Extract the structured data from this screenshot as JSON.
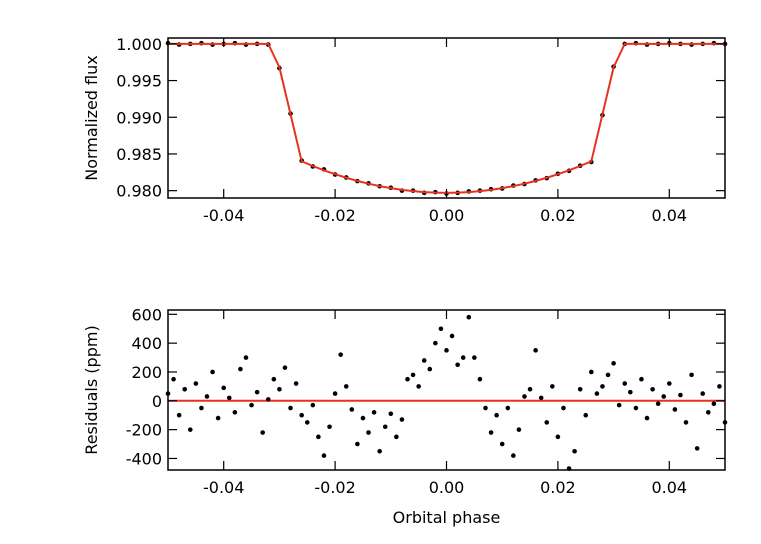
{
  "chart_data": [
    {
      "type": "scatter",
      "ylabel": "Normalized flux",
      "xlim": [
        -0.05,
        0.05
      ],
      "ylim": [
        0.979,
        1.0008
      ],
      "xticks": [
        -0.04,
        -0.02,
        {
          "value": 0,
          "label": "0.00"
        },
        0.02,
        0.04
      ],
      "yticks": [
        {
          "value": 1.0,
          "label": "1.000"
        },
        0.995,
        {
          "value": 0.99,
          "label": "0.990"
        },
        0.985,
        {
          "value": 0.98,
          "label": "0.980"
        }
      ],
      "color": "#000000",
      "x": [
        -0.05,
        -0.048,
        -0.046,
        -0.044,
        -0.042,
        -0.04,
        -0.038,
        -0.036,
        -0.034,
        -0.032,
        -0.03,
        -0.028,
        -0.026,
        -0.024,
        -0.022,
        -0.02,
        -0.018,
        -0.016,
        -0.014,
        -0.012,
        -0.01,
        -0.008,
        -0.006,
        -0.004,
        -0.002,
        0.0,
        0.002,
        0.004,
        0.006,
        0.008,
        0.01,
        0.012,
        0.014,
        0.016,
        0.018,
        0.02,
        0.022,
        0.024,
        0.026,
        0.028,
        0.03,
        0.032,
        0.034,
        0.036,
        0.038,
        0.04,
        0.042,
        0.044,
        0.046,
        0.048,
        0.05
      ],
      "values": [
        1.0001,
        0.9999,
        1.0,
        1.0001,
        0.9999,
        1.0,
        1.0001,
        0.9999,
        1.0,
        0.9999,
        0.9967,
        0.9905,
        0.9841,
        0.9833,
        0.9829,
        0.9822,
        0.9818,
        0.9813,
        0.981,
        0.9806,
        0.9804,
        0.98,
        0.98,
        0.9797,
        0.9798,
        0.9796,
        0.9797,
        0.9799,
        0.98,
        0.9802,
        0.9803,
        0.9807,
        0.9809,
        0.9814,
        0.9817,
        0.9823,
        0.9827,
        0.9834,
        0.9839,
        0.9903,
        0.9969,
        1.0,
        1.0001,
        0.9999,
        1.0,
        1.0001,
        1.0,
        0.9999,
        1.0,
        1.0001,
        1.0
      ],
      "model": {
        "color": "#e8321e",
        "x": [
          -0.05,
          -0.032,
          -0.03,
          -0.028,
          -0.026,
          -0.024,
          -0.022,
          -0.02,
          -0.018,
          -0.016,
          -0.014,
          -0.012,
          -0.01,
          -0.008,
          -0.006,
          -0.004,
          -0.002,
          0.0,
          0.002,
          0.004,
          0.006,
          0.008,
          0.01,
          0.012,
          0.014,
          0.016,
          0.018,
          0.02,
          0.022,
          0.024,
          0.026,
          0.028,
          0.03,
          0.032,
          0.05
        ],
        "values": [
          1.0,
          1.0,
          0.9968,
          0.9904,
          0.984,
          0.98336,
          0.98278,
          0.98225,
          0.98176,
          0.98133,
          0.98095,
          0.98062,
          0.98034,
          0.98011,
          0.97993,
          0.9798,
          0.97973,
          0.9797,
          0.97973,
          0.9798,
          0.97993,
          0.98011,
          0.98034,
          0.98062,
          0.98095,
          0.98133,
          0.98176,
          0.98225,
          0.98278,
          0.98336,
          0.984,
          0.9904,
          0.9968,
          1.0,
          1.0
        ]
      }
    },
    {
      "type": "scatter",
      "ylabel": "Residuals (ppm)",
      "xlabel": "Orbital phase",
      "xlim": [
        -0.05,
        0.05
      ],
      "ylim": [
        -480,
        630
      ],
      "xticks": [
        -0.04,
        -0.02,
        {
          "value": 0,
          "label": "0.00"
        },
        0.02,
        0.04
      ],
      "yticks": [
        600,
        400,
        200,
        0,
        -200,
        -400
      ],
      "color": "#000000",
      "hline": {
        "value": 0,
        "color": "#e8321e"
      },
      "x": [
        -0.05,
        -0.049,
        -0.048,
        -0.047,
        -0.046,
        -0.045,
        -0.044,
        -0.043,
        -0.042,
        -0.041,
        -0.04,
        -0.039,
        -0.038,
        -0.037,
        -0.036,
        -0.035,
        -0.034,
        -0.033,
        -0.032,
        -0.031,
        -0.03,
        -0.029,
        -0.028,
        -0.027,
        -0.026,
        -0.025,
        -0.024,
        -0.023,
        -0.022,
        -0.021,
        -0.02,
        -0.019,
        -0.018,
        -0.017,
        -0.016,
        -0.015,
        -0.014,
        -0.013,
        -0.012,
        -0.011,
        -0.01,
        -0.009,
        -0.008,
        -0.007,
        -0.006,
        -0.005,
        -0.004,
        -0.003,
        -0.002,
        -0.001,
        0.0,
        0.001,
        0.002,
        0.003,
        0.004,
        0.005,
        0.006,
        0.007,
        0.008,
        0.009,
        0.01,
        0.011,
        0.012,
        0.013,
        0.014,
        0.015,
        0.016,
        0.017,
        0.018,
        0.019,
        0.02,
        0.021,
        0.022,
        0.023,
        0.024,
        0.025,
        0.026,
        0.027,
        0.028,
        0.029,
        0.03,
        0.031,
        0.032,
        0.033,
        0.034,
        0.035,
        0.036,
        0.037,
        0.038,
        0.039,
        0.04,
        0.041,
        0.042,
        0.043,
        0.044,
        0.045,
        0.046,
        0.047,
        0.048,
        0.049,
        0.05
      ],
      "values": [
        50,
        150,
        -100,
        80,
        -200,
        120,
        -50,
        30,
        200,
        -120,
        90,
        20,
        -80,
        220,
        300,
        -30,
        60,
        -220,
        10,
        150,
        80,
        230,
        -50,
        120,
        -100,
        -150,
        -30,
        -250,
        -380,
        -180,
        50,
        320,
        100,
        -60,
        -300,
        -120,
        -220,
        -80,
        -350,
        -180,
        -90,
        -250,
        -130,
        150,
        180,
        100,
        280,
        220,
        400,
        500,
        350,
        450,
        250,
        300,
        580,
        300,
        150,
        -50,
        -220,
        -100,
        -300,
        -50,
        -380,
        -200,
        30,
        80,
        350,
        20,
        -150,
        100,
        -250,
        -50,
        -470,
        -350,
        80,
        -100,
        200,
        50,
        100,
        180,
        260,
        -30,
        120,
        60,
        -50,
        150,
        -120,
        80,
        -20,
        30,
        120,
        -60,
        40,
        -150,
        180,
        -330,
        50,
        -80,
        -20,
        100,
        -150
      ]
    }
  ]
}
